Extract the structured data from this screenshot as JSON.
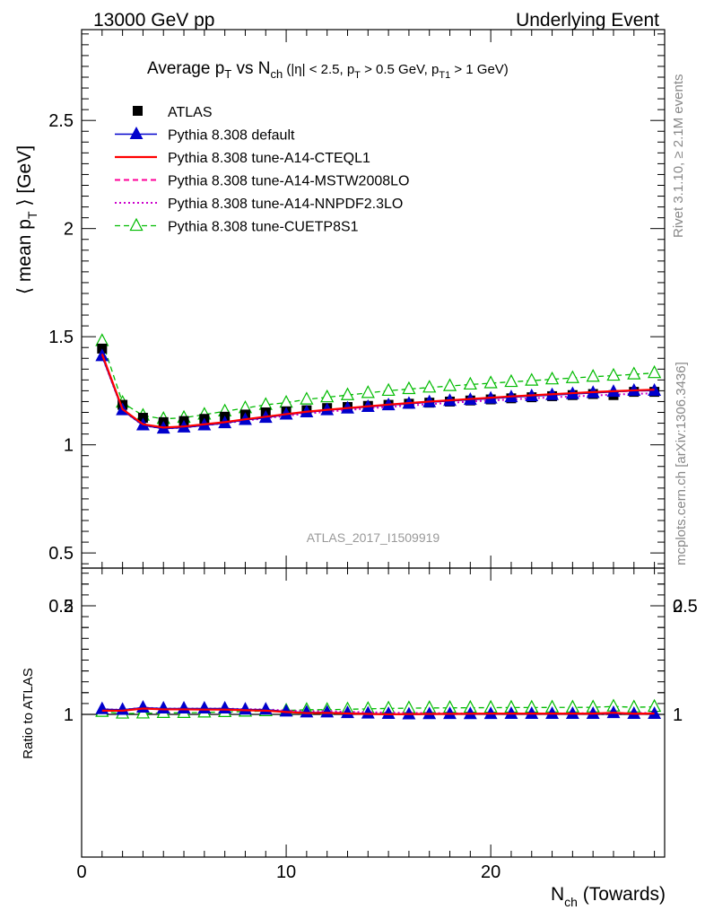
{
  "header": {
    "left": "13000 GeV pp",
    "right": "Underlying Event"
  },
  "side_texts": {
    "rivet": "Rivet 3.1.10, ≥ 2.1M events",
    "mcplots": "mcplots.cern.ch [arXiv:1306.3436]"
  },
  "chart_data": [
    {
      "type": "scatter",
      "title_main": "Average p",
      "title_main_sub": "T",
      "title_vs": " vs N",
      "title_vs_sub": "ch",
      "title_cuts": " (|η| < 2.5, p",
      "title_cuts_sub1": "T",
      "title_cuts_mid": " > 0.5 GeV, p",
      "title_cuts_sub2": "T1",
      "title_cuts_end": " > 1 GeV)",
      "ylabel": "⟨ mean p",
      "ylabel_sub": "T",
      "ylabel_end": " ⟩ [GeV]",
      "xlabel": "N",
      "xlabel_sub": "ch",
      "xlabel_end": " (Towards)",
      "watermark": "ATLAS_2017_I1509919",
      "xlim": [
        0,
        28.5
      ],
      "ylim": [
        0.43,
        2.92
      ],
      "yticks": [
        "0.5",
        "1",
        "1.5",
        "2",
        "2.5"
      ],
      "xticks": [
        "0",
        "10",
        "20"
      ],
      "legend_position": "top-left",
      "legend": [
        "ATLAS",
        "Pythia 8.308 default",
        "Pythia 8.308 tune-A14-CTEQL1",
        "Pythia 8.308 tune-A14-MSTW2008LO",
        "Pythia 8.308 tune-A14-NNPDF2.3LO",
        "Pythia 8.308 tune-CUETP8S1"
      ],
      "x": [
        1,
        2,
        3,
        4,
        5,
        6,
        7,
        8,
        9,
        10,
        11,
        12,
        13,
        14,
        15,
        16,
        17,
        18,
        19,
        20,
        21,
        22,
        23,
        24,
        25,
        26,
        27,
        28
      ],
      "series": [
        {
          "name": "ATLAS",
          "color": "#000000",
          "values": [
            1.445,
            1.185,
            1.125,
            1.105,
            1.11,
            1.12,
            1.13,
            1.14,
            1.15,
            1.155,
            1.16,
            1.17,
            1.175,
            1.18,
            1.185,
            1.19,
            1.195,
            1.2,
            1.205,
            1.21,
            1.215,
            1.22,
            1.225,
            1.23,
            1.235,
            1.23,
            1.245,
            1.245
          ]
        },
        {
          "name": "Pythia 8.308 default",
          "color": "#0000cc",
          "values": [
            1.41,
            1.16,
            1.09,
            1.075,
            1.08,
            1.09,
            1.1,
            1.115,
            1.125,
            1.14,
            1.15,
            1.16,
            1.168,
            1.175,
            1.183,
            1.19,
            1.197,
            1.203,
            1.208,
            1.214,
            1.22,
            1.225,
            1.23,
            1.235,
            1.24,
            1.245,
            1.25,
            1.25
          ]
        },
        {
          "name": "Pythia 8.308 tune-A14-CTEQL1",
          "color": "#ff0000",
          "values": [
            1.42,
            1.165,
            1.095,
            1.08,
            1.085,
            1.095,
            1.105,
            1.118,
            1.13,
            1.142,
            1.153,
            1.162,
            1.17,
            1.178,
            1.186,
            1.193,
            1.2,
            1.206,
            1.212,
            1.218,
            1.224,
            1.229,
            1.234,
            1.239,
            1.244,
            1.248,
            1.252,
            1.255
          ]
        },
        {
          "name": "Pythia 8.308 tune-A14-MSTW2008LO",
          "color": "#ff0099",
          "values": [
            1.415,
            1.163,
            1.093,
            1.078,
            1.083,
            1.093,
            1.103,
            1.116,
            1.128,
            1.14,
            1.151,
            1.16,
            1.168,
            1.176,
            1.184,
            1.191,
            1.198,
            1.204,
            1.21,
            1.216,
            1.222,
            1.227,
            1.232,
            1.237,
            1.242,
            1.246,
            1.25,
            1.252
          ]
        },
        {
          "name": "Pythia 8.308 tune-A14-NNPDF2.3LO",
          "color": "#cc00cc",
          "values": [
            1.41,
            1.16,
            1.09,
            1.075,
            1.08,
            1.09,
            1.1,
            1.112,
            1.123,
            1.134,
            1.144,
            1.153,
            1.161,
            1.168,
            1.175,
            1.182,
            1.188,
            1.194,
            1.2,
            1.205,
            1.21,
            1.215,
            1.22,
            1.224,
            1.228,
            1.232,
            1.236,
            1.238
          ]
        },
        {
          "name": "Pythia 8.308 tune-CUETP8S1",
          "color": "#00bb00",
          "values": [
            1.48,
            1.195,
            1.135,
            1.12,
            1.125,
            1.14,
            1.155,
            1.17,
            1.185,
            1.195,
            1.21,
            1.22,
            1.23,
            1.24,
            1.25,
            1.258,
            1.265,
            1.272,
            1.279,
            1.285,
            1.291,
            1.297,
            1.303,
            1.309,
            1.315,
            1.32,
            1.326,
            1.332
          ]
        }
      ]
    },
    {
      "type": "scatter",
      "ylabel": "Ratio to ATLAS",
      "ylim": [
        0.35,
        2.35
      ],
      "yticks_left": [
        "0.5",
        "1",
        "2"
      ],
      "yticks_right": [
        "0.5",
        "1",
        "2"
      ],
      "reference": 1,
      "x": [
        1,
        2,
        3,
        4,
        5,
        6,
        7,
        8,
        9,
        10,
        11,
        12,
        13,
        14,
        15,
        16,
        17,
        18,
        19,
        20,
        21,
        22,
        23,
        24,
        25,
        26,
        27,
        28
      ],
      "series": [
        {
          "name": "Pythia 8.308 default",
          "values": [
            0.976,
            0.979,
            0.969,
            0.973,
            0.973,
            0.973,
            0.973,
            0.978,
            0.978,
            0.987,
            0.991,
            0.991,
            0.994,
            0.996,
            0.998,
            1.0,
            1.002,
            1.003,
            1.002,
            1.003,
            1.004,
            1.004,
            1.004,
            1.004,
            1.004,
            1.012,
            1.004,
            1.004
          ]
        },
        {
          "name": "Pythia 8.308 tune-A14-CTEQL1",
          "values": [
            0.983,
            0.983,
            0.973,
            0.977,
            0.977,
            0.978,
            0.978,
            0.981,
            0.983,
            0.989,
            0.994,
            0.993,
            0.996,
            0.998,
            1.001,
            1.003,
            1.004,
            1.005,
            1.006,
            1.007,
            1.007,
            1.007,
            1.007,
            1.007,
            1.007,
            1.015,
            1.006,
            1.008
          ]
        },
        {
          "name": "Pythia 8.308 tune-A14-MSTW2008LO",
          "values": [
            0.979,
            0.981,
            0.972,
            0.976,
            0.976,
            0.976,
            0.976,
            0.979,
            0.981,
            0.987,
            0.992,
            0.991,
            0.994,
            0.997,
            0.999,
            1.001,
            1.003,
            1.003,
            1.004,
            1.005,
            1.006,
            1.006,
            1.006,
            1.006,
            1.006,
            1.013,
            1.004,
            1.006
          ]
        },
        {
          "name": "Pythia 8.308 tune-A14-NNPDF2.3LO",
          "values": [
            0.976,
            0.979,
            0.969,
            0.973,
            0.973,
            0.973,
            0.973,
            0.976,
            0.977,
            0.982,
            0.986,
            0.985,
            0.988,
            0.99,
            0.992,
            0.993,
            0.994,
            0.995,
            0.996,
            0.996,
            0.996,
            0.996,
            0.996,
            0.995,
            0.995,
            1.002,
            0.993,
            0.994
          ]
        },
        {
          "name": "Pythia 8.308 tune-CUETP8S1",
          "values": [
            1.024,
            1.008,
            1.009,
            1.014,
            1.014,
            1.018,
            1.022,
            1.026,
            1.03,
            1.035,
            1.043,
            1.043,
            1.047,
            1.051,
            1.055,
            1.057,
            1.059,
            1.06,
            1.061,
            1.062,
            1.063,
            1.063,
            1.064,
            1.064,
            1.065,
            1.073,
            1.065,
            1.07
          ]
        }
      ]
    }
  ]
}
